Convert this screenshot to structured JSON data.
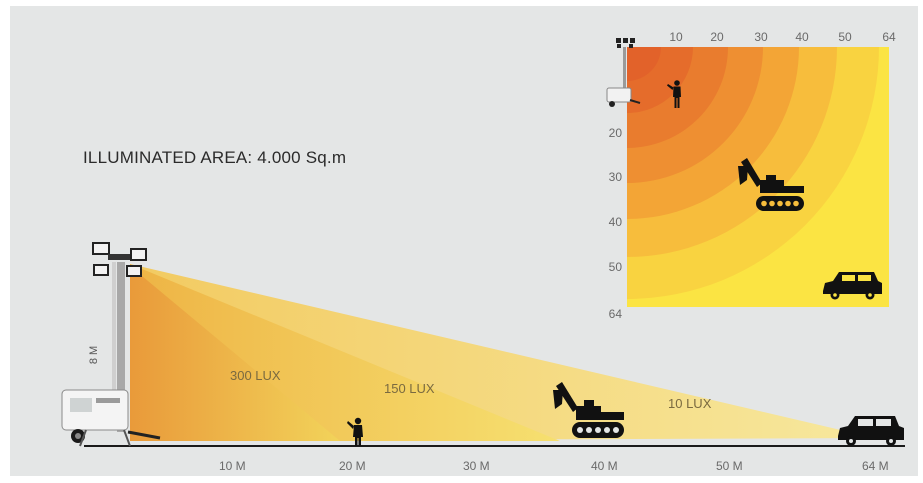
{
  "illuminated_area_text": "ILLUMINATED AREA: 4.000 Sq.m",
  "tower_height_label": "8 M",
  "side_view": {
    "lux_labels": [
      "300 LUX",
      "150 LUX",
      "10 LUX"
    ],
    "distance_labels": [
      "10 M",
      "20 M",
      "30 M",
      "40 M",
      "50 M",
      "64 M"
    ]
  },
  "top_view": {
    "top_axis_labels": [
      "10",
      "20",
      "30",
      "40",
      "50",
      "64"
    ],
    "left_axis_labels": [
      "20",
      "30",
      "40",
      "50",
      "64"
    ]
  },
  "colors": {
    "background": "#e4e6e6",
    "zone_dark": "#e2622a",
    "zone_light": "#fbe443",
    "beam_light": "#f6e27a",
    "silhouette": "#111111"
  },
  "icons": [
    "light-tower-icon",
    "person-icon",
    "excavator-icon",
    "car-icon"
  ]
}
